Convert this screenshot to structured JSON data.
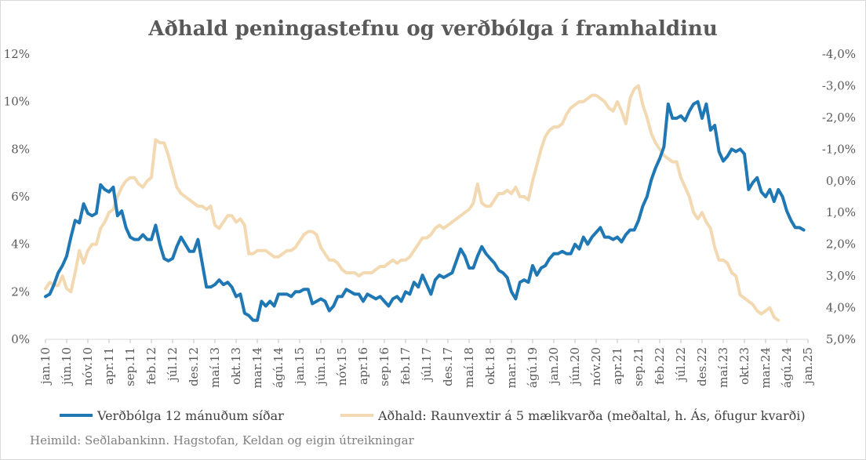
{
  "chart_data": {
    "type": "line",
    "title": "Aðhald peningastefnu og verðbólga í framhaldinu",
    "source": "Heimild: Seðlabankinn. Hagstofan, Keldan og eigin útreikningar",
    "x_tick_labels": [
      "jan.10",
      "jún.10",
      "nóv.10",
      "apr.11",
      "sep.11",
      "feb.12",
      "júl.12",
      "des.12",
      "maí.13",
      "okt.13",
      "mar.14",
      "ágú.14",
      "jan.15",
      "jún.15",
      "nóv.15",
      "apr.16",
      "sep.16",
      "feb.17",
      "júl.17",
      "des.17",
      "maí.18",
      "okt.18",
      "mar.19",
      "ágú.19",
      "jan.20",
      "jún.20",
      "nóv.20",
      "apr.21",
      "sep.21",
      "feb.22",
      "júl.22",
      "des.22",
      "maí.23",
      "okt.23",
      "mar.24",
      "ágú.24",
      "jan.25"
    ],
    "x_range": [
      "2010-01",
      "2025-01"
    ],
    "y_left": {
      "ticks": [
        "0%",
        "2%",
        "4%",
        "6%",
        "8%",
        "10%",
        "12%"
      ],
      "ylim": [
        0,
        12
      ]
    },
    "y_right": {
      "ticks": [
        "-4,0%",
        "-3,0%",
        "-2,0%",
        "-1,0%",
        "0,0%",
        "1,0%",
        "2,0%",
        "3,0%",
        "4,0%",
        "5,0%"
      ],
      "ylim": [
        -4,
        5
      ],
      "inverted": true
    },
    "grid": false,
    "legend_position": "bottom",
    "series": [
      {
        "name": "Verðbólga 12 mánuðum síðar",
        "axis": "left",
        "color": "#1f77b4",
        "start": "2010-01",
        "values": [
          1.8,
          1.9,
          2.3,
          2.8,
          3.1,
          3.5,
          4.3,
          5.0,
          4.9,
          5.7,
          5.3,
          5.2,
          5.3,
          6.5,
          6.3,
          6.2,
          6.4,
          5.2,
          5.4,
          4.7,
          4.3,
          4.2,
          4.2,
          4.4,
          4.2,
          4.2,
          4.8,
          4.0,
          3.4,
          3.3,
          3.4,
          3.9,
          4.3,
          4.0,
          3.7,
          3.7,
          4.2,
          3.2,
          2.2,
          2.2,
          2.3,
          2.5,
          2.3,
          2.4,
          2.2,
          1.8,
          1.9,
          1.1,
          1.0,
          0.8,
          0.8,
          1.6,
          1.4,
          1.6,
          1.4,
          1.9,
          1.9,
          1.9,
          1.8,
          2.0,
          2.0,
          2.1,
          2.1,
          1.5,
          1.6,
          1.7,
          1.6,
          1.2,
          1.4,
          1.8,
          1.8,
          2.1,
          2.0,
          1.9,
          1.9,
          1.6,
          1.9,
          1.8,
          1.7,
          1.8,
          1.6,
          1.4,
          1.7,
          1.8,
          1.6,
          2.0,
          1.9,
          2.4,
          2.2,
          2.7,
          2.3,
          1.9,
          2.5,
          2.7,
          2.6,
          2.7,
          2.8,
          3.3,
          3.8,
          3.5,
          3.0,
          3.0,
          3.5,
          3.9,
          3.6,
          3.4,
          3.2,
          2.9,
          2.8,
          2.6,
          2.0,
          1.7,
          2.4,
          2.5,
          2.4,
          3.1,
          2.7,
          3.0,
          3.1,
          3.4,
          3.6,
          3.6,
          3.7,
          3.6,
          3.6,
          4.0,
          3.8,
          4.3,
          4.0,
          4.3,
          4.5,
          4.7,
          4.3,
          4.3,
          4.2,
          4.3,
          4.1,
          4.4,
          4.6,
          4.6,
          5.0,
          5.6,
          6.0,
          6.7,
          7.2,
          7.6,
          8.1,
          9.9,
          9.3,
          9.3,
          9.4,
          9.2,
          9.6,
          9.9,
          10.0,
          9.3,
          9.9,
          8.8,
          9.0,
          7.9,
          7.5,
          7.7,
          8.0,
          7.9,
          8.0,
          7.8,
          6.3,
          6.6,
          6.8,
          6.2,
          6.0,
          6.3,
          5.8,
          6.3,
          6.0,
          5.4,
          5.0,
          4.7,
          4.7,
          4.6
        ]
      },
      {
        "name": "Aðhald: Raunvextir á 5 mælikvarða (meðaltal, h. Ás, öfugur kvarði)",
        "axis": "right",
        "color": "#f3d9b1",
        "start": "2010-01",
        "values": [
          3.4,
          3.2,
          3.3,
          3.3,
          3.0,
          3.4,
          3.5,
          2.9,
          2.2,
          2.6,
          2.2,
          2.0,
          2.0,
          1.5,
          1.3,
          1.0,
          0.9,
          0.5,
          0.2,
          0.0,
          -0.1,
          -0.1,
          0.1,
          0.2,
          0.0,
          -0.1,
          -1.3,
          -1.2,
          -1.2,
          -0.8,
          -0.3,
          0.2,
          0.4,
          0.5,
          0.6,
          0.7,
          0.8,
          0.8,
          0.9,
          0.8,
          1.4,
          1.5,
          1.3,
          1.1,
          1.1,
          1.3,
          1.2,
          1.4,
          2.3,
          2.3,
          2.2,
          2.2,
          2.2,
          2.3,
          2.4,
          2.4,
          2.3,
          2.2,
          2.2,
          2.1,
          1.9,
          1.7,
          1.6,
          1.6,
          1.7,
          2.1,
          2.3,
          2.5,
          2.5,
          2.6,
          2.8,
          2.9,
          2.9,
          2.9,
          3.0,
          2.9,
          2.9,
          2.9,
          2.8,
          2.7,
          2.7,
          2.6,
          2.5,
          2.6,
          2.5,
          2.5,
          2.4,
          2.2,
          2.0,
          1.8,
          1.8,
          1.7,
          1.5,
          1.4,
          1.5,
          1.4,
          1.3,
          1.2,
          1.1,
          1.0,
          0.9,
          0.7,
          0.1,
          0.7,
          0.8,
          0.8,
          0.6,
          0.4,
          0.4,
          0.3,
          0.4,
          0.2,
          0.5,
          0.5,
          0.6,
          0.0,
          -0.5,
          -1.0,
          -1.4,
          -1.6,
          -1.7,
          -1.7,
          -1.8,
          -2.1,
          -2.3,
          -2.4,
          -2.5,
          -2.5,
          -2.6,
          -2.7,
          -2.7,
          -2.6,
          -2.5,
          -2.3,
          -2.2,
          -2.5,
          -2.2,
          -1.8,
          -2.6,
          -2.9,
          -3.0,
          -2.4,
          -2.0,
          -1.5,
          -1.2,
          -1.0,
          -0.8,
          -0.7,
          -0.6,
          -0.6,
          -0.1,
          0.2,
          0.5,
          1.0,
          1.2,
          1.0,
          1.3,
          1.5,
          2.1,
          2.5,
          2.5,
          2.6,
          2.9,
          3.0,
          3.6,
          3.7,
          3.8,
          3.9,
          4.1,
          4.2,
          4.1,
          4.0,
          4.3,
          4.4
        ]
      }
    ]
  }
}
